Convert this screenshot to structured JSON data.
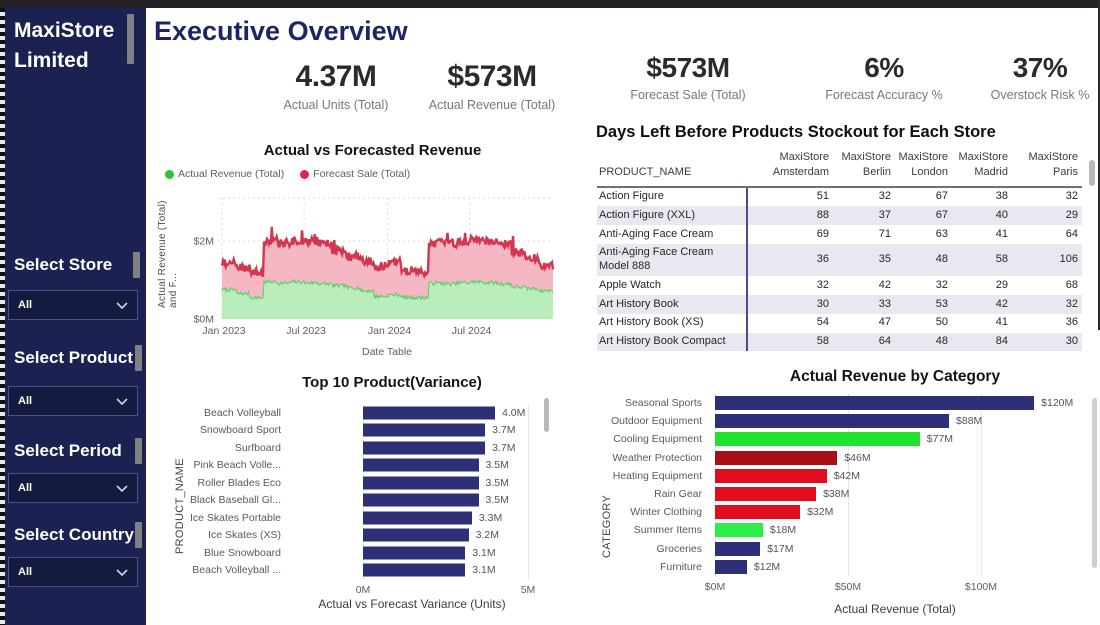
{
  "sidebar": {
    "title": "MaxiStore Limited",
    "filters": [
      {
        "label": "Select Store",
        "value": "All"
      },
      {
        "label": "Select Product",
        "value": "All"
      },
      {
        "label": "Select Period",
        "value": "All"
      },
      {
        "label": "Select Country",
        "value": "All"
      }
    ]
  },
  "header": {
    "title": "Executive Overview"
  },
  "kpis": [
    {
      "value": "4.37M",
      "label": "Actual Units (Total)"
    },
    {
      "value": "$573M",
      "label": "Actual Revenue (Total)"
    },
    {
      "value": "$573M",
      "label": "Forecast Sale (Total)"
    },
    {
      "value": "6%",
      "label": "Forecast Accuracy %"
    },
    {
      "value": "37%",
      "label": "Overstock Risk %"
    }
  ],
  "colors": {
    "sidebar_bg": "#1b2150",
    "accent_navy": "#2d3077",
    "bright_red": "#e00d1e",
    "dark_red": "#a90d16",
    "bright_green": "#1fe32f",
    "area_green_fill": "#b9edbb",
    "area_pink_fill": "#f4b7c3",
    "area_red_line": "#d2374f"
  },
  "chart_data": [
    {
      "id": "actual_vs_forecast",
      "type": "area",
      "title": "Actual vs Forecasted Revenue",
      "legend": [
        {
          "label": "Actual Revenue (Total)",
          "color": "#2fc32f"
        },
        {
          "label": "Forecast Sale (Total)",
          "color": "#e2254b"
        }
      ],
      "xlabel": "Date Table",
      "ylabel": "Actual Revenue (Total) and F...",
      "ylim": [
        0,
        2.6
      ],
      "yticks": [
        {
          "v": 0,
          "label": "$0M"
        },
        {
          "v": 2,
          "label": "$2M"
        }
      ],
      "xticks": [
        "Jan 2023",
        "Jul 2023",
        "Jan 2024",
        "Jul 2024"
      ],
      "x_range": "Jan 2023 - Dec 2024 (daily)",
      "unit": "$M",
      "series": [
        {
          "name": "Actual Revenue (Total)",
          "monthly_values": [
            0.75,
            0.65,
            0.55,
            0.95,
            0.92,
            0.95,
            0.93,
            0.9,
            0.85,
            0.8,
            0.72,
            0.58,
            0.62,
            0.55,
            0.55,
            0.92,
            0.9,
            0.93,
            0.95,
            0.93,
            0.9,
            0.82,
            0.78,
            0.72
          ]
        },
        {
          "name": "Forecast Sale (Total)",
          "monthly_values": [
            1.45,
            1.3,
            1.2,
            2.0,
            1.95,
            2.0,
            2.0,
            1.95,
            1.75,
            1.6,
            1.5,
            1.35,
            1.45,
            1.25,
            1.2,
            1.95,
            1.95,
            2.0,
            2.05,
            2.0,
            1.95,
            1.7,
            1.55,
            1.35
          ]
        }
      ]
    },
    {
      "id": "stockout_table",
      "type": "table",
      "title": "Days Left Before Products Stockout for Each Store",
      "columns": [
        "PRODUCT_NAME",
        "MaxiStore Amsterdam",
        "MaxiStore Berlin",
        "MaxiStore London",
        "MaxiStore Madrid",
        "MaxiStore Paris"
      ],
      "rows": [
        [
          "Action Figure",
          51,
          32,
          67,
          38,
          32
        ],
        [
          "Action Figure (XXL)",
          88,
          37,
          67,
          40,
          29
        ],
        [
          "Anti-Aging Face Cream",
          69,
          71,
          63,
          41,
          64
        ],
        [
          "Anti-Aging Face Cream Model 888",
          36,
          35,
          48,
          58,
          106
        ],
        [
          "Apple Watch",
          32,
          42,
          32,
          29,
          68
        ],
        [
          "Art History Book",
          30,
          33,
          53,
          42,
          32
        ],
        [
          "Art History Book (XS)",
          54,
          47,
          50,
          41,
          36
        ],
        [
          "Art History Book Compact",
          58,
          64,
          48,
          84,
          30
        ]
      ]
    },
    {
      "id": "top10_variance",
      "type": "bar",
      "title": "Top 10 Product(Variance)",
      "xlabel": "Actual vs Forecast Variance (Units)",
      "ylabel": "PRODUCT_NAME",
      "categories": [
        "Beach Volleyball",
        "Snowboard Sport",
        "Surfboard",
        "Pink Beach Volle...",
        "Roller Blades Eco",
        "Black Baseball Gl...",
        "Ice Skates Portable",
        "Ice Skates (XS)",
        "Blue Snowboard",
        "Beach Volleyball ..."
      ],
      "values": [
        4.0,
        3.7,
        3.7,
        3.5,
        3.5,
        3.5,
        3.3,
        3.2,
        3.1,
        3.1
      ],
      "value_labels": [
        "4.0M",
        "3.7M",
        "3.7M",
        "3.5M",
        "3.5M",
        "3.5M",
        "3.3M",
        "3.2M",
        "3.1M",
        "3.1M"
      ],
      "xlim": [
        0,
        5
      ],
      "xticks": [
        {
          "v": 0,
          "label": "0M"
        },
        {
          "v": 5,
          "label": "5M"
        }
      ],
      "bar_color": "#2d3077"
    },
    {
      "id": "revenue_by_category",
      "type": "bar",
      "title": "Actual Revenue by Category",
      "xlabel": "Actual Revenue (Total)",
      "ylabel": "CATEGORY",
      "categories": [
        "Seasonal Sports",
        "Outdoor Equipment",
        "Cooling Equipment",
        "Weather Protection",
        "Heating Equipment",
        "Rain Gear",
        "Winter Clothing",
        "Summer Items",
        "Groceries",
        "Furniture"
      ],
      "values": [
        120,
        88,
        77,
        46,
        42,
        38,
        32,
        18,
        17,
        12
      ],
      "value_labels": [
        "$120M",
        "$88M",
        "$77M",
        "$46M",
        "$42M",
        "$38M",
        "$32M",
        "$18M",
        "$17M",
        "$12M"
      ],
      "bar_colors": [
        "#2d3077",
        "#2d3077",
        "#1fe32f",
        "#a90d16",
        "#e00d1e",
        "#e00d1e",
        "#e00d1e",
        "#2bee49",
        "#2d3077",
        "#2d3077"
      ],
      "xlim": [
        0,
        141
      ],
      "xticks": [
        {
          "v": 0,
          "label": "$0M"
        },
        {
          "v": 50,
          "label": "$50M"
        },
        {
          "v": 100,
          "label": "$100M"
        }
      ]
    }
  ]
}
